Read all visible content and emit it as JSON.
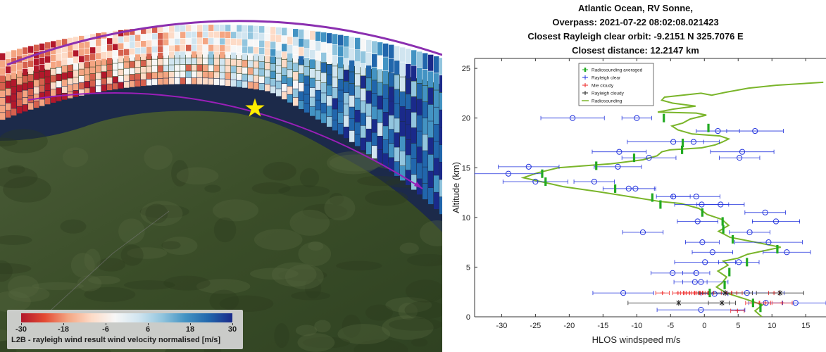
{
  "map": {
    "colorbar": {
      "title": "L2B - rayleigh wind result wind velocity normalised [m/s]",
      "ticks": [
        "-30",
        "-18",
        "-6",
        "6",
        "18",
        "30"
      ]
    },
    "colors": {
      "ocean": "#1c2a4a",
      "land": "#3c4e2a",
      "track": "#7a2aa0",
      "star": "#ffee00"
    }
  },
  "chart_data": {
    "type": "scatter",
    "title": [
      "Atlantic Ocean, RV Sonne,",
      "Overpass: 2021-07-22 08:02:08.021423",
      "Closest Rayleigh clear orbit:  -9.2151 N 325.7076 E",
      "Closest distance:  12.2147  km"
    ],
    "xlabel": "HLOS windspeed m/s",
    "ylabel": "Altitude (km)",
    "xlim": [
      -34,
      18
    ],
    "ylim": [
      0,
      26
    ],
    "xticks": [
      "-30",
      "-25",
      "-20",
      "-15",
      "-10",
      "-5",
      "0",
      "5",
      "10",
      "15"
    ],
    "yticks": [
      "0",
      "5",
      "10",
      "15",
      "20",
      "25"
    ],
    "legend_position": "top-left",
    "legend": [
      "Radiosounding averaged",
      "Rayleigh clear",
      "Mie cloudy",
      "Rayleigh cloudy",
      "Radiosounding"
    ],
    "series": [
      {
        "name": "Radiosounding averaged",
        "color": "#22aa22",
        "points": [
          {
            "x": -6,
            "y": 20
          },
          {
            "x": 0.6,
            "y": 19.0
          },
          {
            "x": -3.2,
            "y": 17.5
          },
          {
            "x": -3.3,
            "y": 16.8
          },
          {
            "x": -10.4,
            "y": 16.0
          },
          {
            "x": -16,
            "y": 15.2
          },
          {
            "x": -24,
            "y": 14.4
          },
          {
            "x": -23.5,
            "y": 13.6
          },
          {
            "x": -13.2,
            "y": 12.9
          },
          {
            "x": -7.7,
            "y": 12.0
          },
          {
            "x": -6.5,
            "y": 11.3
          },
          {
            "x": -0.3,
            "y": 10.5
          },
          {
            "x": 2.7,
            "y": 9.6
          },
          {
            "x": 2.8,
            "y": 8.8
          },
          {
            "x": 4.2,
            "y": 7.8
          },
          {
            "x": 10.8,
            "y": 6.8
          },
          {
            "x": 6.3,
            "y": 5.5
          },
          {
            "x": 3.7,
            "y": 4.5
          },
          {
            "x": 3.0,
            "y": 3.2
          },
          {
            "x": 0.8,
            "y": 2.4
          },
          {
            "x": 7.2,
            "y": 1.4
          },
          {
            "x": 8.3,
            "y": 0.9
          }
        ]
      },
      {
        "name": "Rayleigh clear",
        "color": "#2233dd",
        "points": [
          {
            "x": -19.5,
            "y": 20.0,
            "e": 4.7
          },
          {
            "x": -10,
            "y": 20.0,
            "e": 2.2
          },
          {
            "x": 2,
            "y": 18.7,
            "e": 3.2
          },
          {
            "x": 7.5,
            "y": 18.7,
            "e": 4.2
          },
          {
            "x": -4.6,
            "y": 17.6,
            "e": 6.8
          },
          {
            "x": -1.6,
            "y": 17.6,
            "e": 1.5
          },
          {
            "x": -12.6,
            "y": 16.6,
            "e": 4.0
          },
          {
            "x": 5.6,
            "y": 16.6,
            "e": 4.7
          },
          {
            "x": -8.2,
            "y": 16.0,
            "e": 4.0
          },
          {
            "x": 5.2,
            "y": 16.0,
            "e": 3.0
          },
          {
            "x": -12.8,
            "y": 15.1,
            "e": 3.5
          },
          {
            "x": -26,
            "y": 15.1,
            "e": 4.5
          },
          {
            "x": -29,
            "y": 14.4,
            "e": 5.0
          },
          {
            "x": -25,
            "y": 13.6,
            "e": 4.8
          },
          {
            "x": -16.3,
            "y": 13.6,
            "e": 3.0
          },
          {
            "x": -11.2,
            "y": 12.9,
            "e": 3.8
          },
          {
            "x": -10.2,
            "y": 12.9,
            "e": 3.0
          },
          {
            "x": -4.6,
            "y": 12.1,
            "e": 2.5
          },
          {
            "x": -1.2,
            "y": 12.1,
            "e": 3.5
          },
          {
            "x": 2.4,
            "y": 11.3,
            "e": 3.5
          },
          {
            "x": -0.4,
            "y": 11.3,
            "e": 4.0
          },
          {
            "x": 9,
            "y": 10.5,
            "e": 3.0
          },
          {
            "x": -1.0,
            "y": 9.6,
            "e": 3.0
          },
          {
            "x": 10.6,
            "y": 9.6,
            "e": 3.5
          },
          {
            "x": -9.1,
            "y": 8.5,
            "e": 3.0
          },
          {
            "x": 6.7,
            "y": 8.5,
            "e": 3.0
          },
          {
            "x": -0.3,
            "y": 7.5,
            "e": 2.5
          },
          {
            "x": 9.5,
            "y": 7.5,
            "e": 5.0
          },
          {
            "x": 1.2,
            "y": 6.5,
            "e": 3.0
          },
          {
            "x": 12.2,
            "y": 6.5,
            "e": 3.5
          },
          {
            "x": 0.1,
            "y": 5.5,
            "e": 4.5
          },
          {
            "x": 5.1,
            "y": 5.5,
            "e": 3.0
          },
          {
            "x": -4.7,
            "y": 4.4,
            "e": 3.2
          },
          {
            "x": -1.2,
            "y": 4.4,
            "e": 2.0
          },
          {
            "x": -1.4,
            "y": 3.5,
            "e": 1.8
          },
          {
            "x": -0.5,
            "y": 3.5,
            "e": 4.0
          },
          {
            "x": -12,
            "y": 2.4,
            "e": 4.5
          },
          {
            "x": 6.3,
            "y": 2.4,
            "e": 5.5
          },
          {
            "x": 1.5,
            "y": 2.3,
            "e": 2.0
          },
          {
            "x": 9.1,
            "y": 1.4,
            "e": 2.5
          },
          {
            "x": 13.5,
            "y": 1.4,
            "e": 4.5
          },
          {
            "x": -0.5,
            "y": 0.7,
            "e": 6.5
          }
        ]
      },
      {
        "name": "Mie cloudy",
        "color": "#ee2222",
        "points": [
          {
            "x": -6.2,
            "y": 2.4,
            "e": 1.0
          },
          {
            "x": -3.9,
            "y": 2.4,
            "e": 0.8
          },
          {
            "x": -2.7,
            "y": 2.4,
            "e": 0.8
          },
          {
            "x": -2.2,
            "y": 2.4,
            "e": 0.8
          },
          {
            "x": -1.4,
            "y": 2.4,
            "e": 0.8
          },
          {
            "x": -0.7,
            "y": 2.4,
            "e": 0.8
          },
          {
            "x": -0.3,
            "y": 2.4,
            "e": 0.8
          },
          {
            "x": 0.6,
            "y": 2.4,
            "e": 0.8
          },
          {
            "x": 3.3,
            "y": 2.4,
            "e": 0.8
          },
          {
            "x": 4.8,
            "y": 2.4,
            "e": 0.8
          },
          {
            "x": 10.3,
            "y": 2.4,
            "e": 0.8
          },
          {
            "x": 7.1,
            "y": 1.4,
            "e": 1.0
          },
          {
            "x": 9.0,
            "y": 1.4,
            "e": 0.8
          },
          {
            "x": 11.5,
            "y": 1.4,
            "e": 1.5
          },
          {
            "x": 4.9,
            "y": 0.6,
            "e": 1.0
          }
        ]
      },
      {
        "name": "Rayleigh cloudy",
        "color": "#222222",
        "points": [
          {
            "x": 3.1,
            "y": 2.4,
            "e": 4.0
          },
          {
            "x": 11.2,
            "y": 2.4,
            "e": 3.5
          },
          {
            "x": -3.8,
            "y": 1.4,
            "e": 7.5
          },
          {
            "x": 2.6,
            "y": 1.4,
            "e": 2.0
          }
        ]
      }
    ],
    "line": {
      "name": "Radiosounding",
      "color": "#7ab52a",
      "x": [
        8.5,
        7.5,
        8.6,
        6.0,
        3.2,
        1.8,
        2.6,
        3.3,
        2.0,
        3.5,
        2.8,
        5.0,
        6.4,
        11.3,
        7.6,
        3.8,
        2.1,
        3.6,
        2.6,
        0.4,
        -0.8,
        -3.4,
        -6.5,
        -10.2,
        -15.8,
        -20.9,
        -26.8,
        -24.6,
        -21.6,
        -13.8,
        -9.1,
        -7.0,
        -6.3,
        -5.1,
        -0.4,
        1.6,
        2.7,
        3.6,
        2.3,
        -1.8,
        -3.9,
        -4.8,
        -3.2,
        -2.1,
        0.3,
        -1.2,
        -6.9,
        -4.6,
        -1.3,
        -4.7,
        -6.3,
        -5.9,
        -0.5,
        1.1,
        3.2,
        6.5,
        10.6,
        17.6
      ],
      "y": [
        0.0,
        0.6,
        1.2,
        1.8,
        2.4,
        3.0,
        3.4,
        4.0,
        4.6,
        5.2,
        5.6,
        5.9,
        6.3,
        7.0,
        7.5,
        8.0,
        8.6,
        9.2,
        9.8,
        10.3,
        10.9,
        11.4,
        11.6,
        12.0,
        12.6,
        13.1,
        14.0,
        14.5,
        15.0,
        15.4,
        15.8,
        16.2,
        16.6,
        16.8,
        17.0,
        17.3,
        17.6,
        17.9,
        18.2,
        18.4,
        18.8,
        19.2,
        19.5,
        19.9,
        20.3,
        20.5,
        20.6,
        20.9,
        21.2,
        21.5,
        21.8,
        22.1,
        22.5,
        22.3,
        22.6,
        23.0,
        23.3,
        23.6
      ]
    }
  }
}
